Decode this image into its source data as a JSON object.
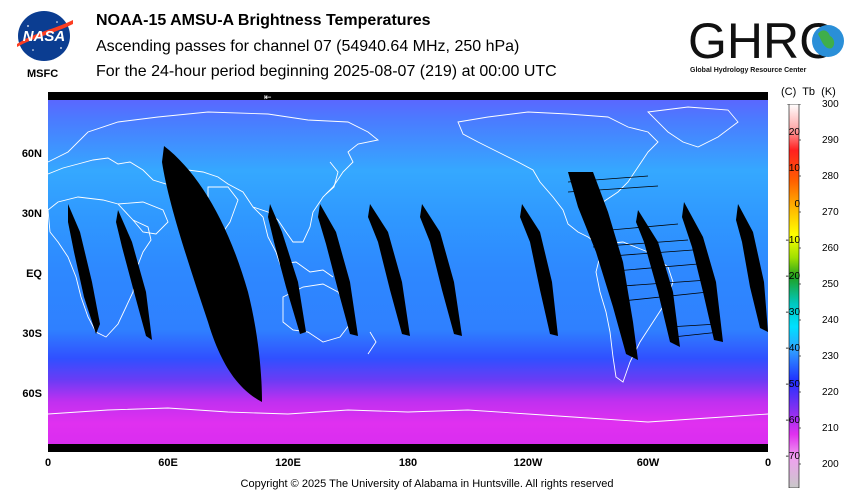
{
  "header": {
    "title": "NOAA-15 AMSU-A Brightness Temperatures",
    "subtitle": "Ascending passes for channel 07 (54940.64 MHz, 250 hPa)",
    "period": "For the 24-hour period beginning 2025-08-07 (219) at 00:00 UTC"
  },
  "logos": {
    "nasa_text": "NASA",
    "msfc_text": "MSFC",
    "ghrc_text": "GHRC",
    "ghrc_subtitle": "Global Hydrology Resource Center"
  },
  "map": {
    "lat_labels": [
      "60N",
      "30N",
      "EQ",
      "30S",
      "60S"
    ],
    "lon_labels": [
      "0",
      "60E",
      "120E",
      "180",
      "120W",
      "60W",
      "0"
    ],
    "colors": {
      "cold": "#e030f0",
      "mid": "#3050ff",
      "warm": "#2fa0ff",
      "gap": "#000000",
      "coast": "#ffffff"
    }
  },
  "colorbar": {
    "header_c": "(C)",
    "header_tb": "Tb",
    "header_k": "(K)",
    "celsius_ticks": [
      "20",
      "10",
      "0",
      "-10",
      "-20",
      "-30",
      "-40",
      "-50",
      "-60",
      "-70"
    ],
    "kelvin_ticks": [
      "300",
      "290",
      "280",
      "270",
      "260",
      "250",
      "240",
      "230",
      "220",
      "210",
      "200"
    ]
  },
  "footer": {
    "copyright": "Copyright © 2025 The University of Alabama in Huntsville.  All rights reserved"
  }
}
